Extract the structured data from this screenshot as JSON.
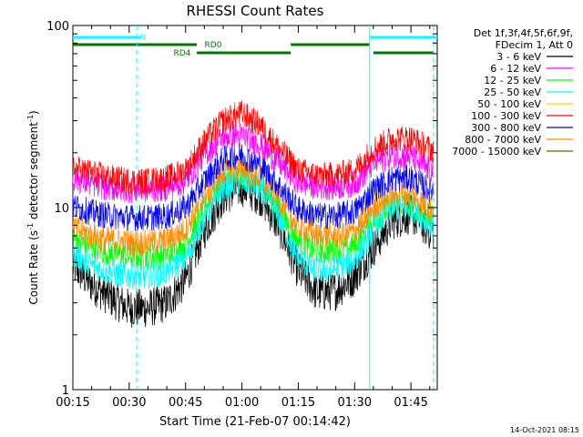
{
  "chart_data": {
    "type": "line",
    "title": "RHESSI Count Rates",
    "xlabel": "Start Time (21-Feb-07 00:14:42)",
    "ylabel_main": "Count Rate (s",
    "ylabel_sup1": "-1",
    "ylabel_mid": " detector segment",
    "ylabel_sup2": "-1",
    "ylabel_end": ")",
    "y_scale": "log",
    "ylim": [
      1,
      100
    ],
    "xlim": [
      "00:15",
      "01:52"
    ],
    "x_ticks": [
      "00:15",
      "00:30",
      "00:45",
      "01:00",
      "01:15",
      "01:30",
      "01:45"
    ],
    "y_ticks": [
      "1",
      "10",
      "100"
    ],
    "timestamp": "14-Oct-2021 08:15",
    "legend": {
      "placement": "right",
      "header": [
        "Det 1f,3f,4f,5f,6f,9f,",
        "FDecim 1, Att 0"
      ],
      "entries": [
        {
          "label": "3 - 6 keV",
          "color": "#000000"
        },
        {
          "label": "6 - 12 keV",
          "color": "#ff00ff"
        },
        {
          "label": "12 - 25 keV",
          "color": "#00ff00"
        },
        {
          "label": "25 - 50 keV",
          "color": "#00ffff"
        },
        {
          "label": "50 - 100 keV",
          "color": "#ffd700"
        },
        {
          "label": "100 - 300 keV",
          "color": "#ff0000"
        },
        {
          "label": "300 - 800 keV",
          "color": "#0000ff"
        },
        {
          "label": "800 - 7000 keV",
          "color": "#ff8c00"
        },
        {
          "label": "7000 - 15000 keV",
          "color": "#6b6b00"
        }
      ]
    },
    "flag_bars": [
      {
        "label": "N",
        "color": "#00ffff",
        "segments": [
          [
            "00:15",
            "00:33"
          ],
          [
            "01:34",
            "01:52"
          ]
        ]
      },
      {
        "label": "RD0",
        "color": "#007700",
        "segments": [
          [
            "00:15",
            "00:48"
          ],
          [
            "01:13",
            "01:34"
          ]
        ]
      },
      {
        "label": "RD4",
        "color": "#007700",
        "segments": [
          [
            "00:48",
            "01:13"
          ],
          [
            "01:35",
            "01:51"
          ]
        ]
      }
    ],
    "vertical_lines": [
      {
        "time": "00:32",
        "style": "dashed",
        "color": "#00ffff"
      },
      {
        "time": "01:34",
        "style": "solid",
        "color": "#00ffff"
      },
      {
        "time": "01:51",
        "style": "dashed",
        "color": "#00ffff"
      }
    ],
    "x": [
      "00:15",
      "00:20",
      "00:25",
      "00:30",
      "00:35",
      "00:40",
      "00:45",
      "00:50",
      "00:55",
      "01:00",
      "01:05",
      "01:10",
      "01:15",
      "01:20",
      "01:25",
      "01:30",
      "01:35",
      "01:40",
      "01:45",
      "01:50"
    ],
    "series": [
      {
        "name": "3 - 6 keV",
        "color": "#000000",
        "values": [
          4.8,
          3.8,
          3.2,
          2.8,
          2.8,
          3.0,
          4.0,
          7.5,
          11.5,
          13.0,
          11.5,
          7.8,
          4.5,
          3.4,
          3.5,
          4.2,
          6.0,
          8.5,
          9.2,
          7.5
        ]
      },
      {
        "name": "12 - 25 keV",
        "color": "#00ff00",
        "values": [
          6.8,
          6.0,
          5.6,
          5.4,
          5.4,
          5.5,
          6.2,
          10.0,
          14.0,
          15.0,
          13.5,
          9.8,
          6.5,
          5.8,
          5.8,
          6.2,
          8.5,
          10.5,
          10.5,
          8.8
        ]
      },
      {
        "name": "25 - 50 keV",
        "color": "#00ffff",
        "values": [
          5.6,
          4.8,
          4.4,
          4.2,
          4.2,
          4.4,
          5.2,
          8.8,
          13.0,
          14.0,
          12.5,
          8.8,
          5.2,
          4.5,
          4.6,
          5.2,
          7.6,
          9.8,
          10.0,
          8.0
        ]
      },
      {
        "name": "800 - 7000 keV",
        "color": "#ff8c00",
        "values": [
          7.8,
          7.0,
          6.6,
          6.4,
          6.4,
          6.6,
          7.6,
          11.5,
          15.5,
          16.5,
          14.5,
          11.0,
          7.8,
          7.0,
          7.0,
          7.4,
          10.0,
          11.8,
          11.8,
          10.0
        ]
      },
      {
        "name": "300 - 800 keV",
        "color": "#0000ff",
        "values": [
          10.2,
          9.4,
          9.0,
          8.8,
          8.8,
          9.0,
          10.0,
          14.0,
          18.5,
          19.5,
          17.0,
          13.0,
          9.8,
          9.0,
          9.0,
          9.5,
          12.5,
          14.5,
          14.5,
          12.5
        ]
      },
      {
        "name": "6 - 12 keV",
        "color": "#ff00ff",
        "values": [
          14.5,
          13.5,
          12.8,
          12.5,
          12.5,
          12.8,
          14.0,
          19.5,
          24.5,
          25.0,
          22.0,
          17.5,
          13.8,
          13.0,
          13.0,
          13.5,
          17.5,
          19.5,
          19.0,
          16.0
        ]
      },
      {
        "name": "100 - 300 keV",
        "color": "#ff0000",
        "values": [
          16.5,
          15.5,
          14.5,
          14.0,
          14.0,
          14.5,
          16.0,
          23.0,
          30.0,
          33.0,
          28.0,
          21.0,
          16.0,
          15.0,
          15.0,
          16.0,
          21.0,
          24.0,
          24.0,
          21.0
        ]
      }
    ]
  }
}
